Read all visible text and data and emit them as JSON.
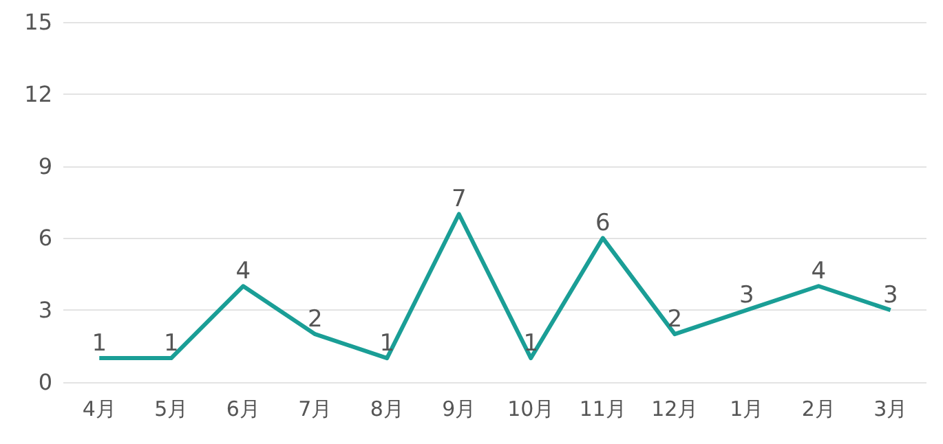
{
  "chart_data": {
    "type": "line",
    "categories": [
      "4月",
      "5月",
      "6月",
      "7月",
      "8月",
      "9月",
      "10月",
      "11月",
      "12月",
      "1月",
      "2月",
      "3月"
    ],
    "series": [
      {
        "color": "#1a9e96",
        "values": [
          1,
          1,
          4,
          2,
          1,
          7,
          1,
          6,
          2,
          3,
          4,
          3
        ]
      }
    ],
    "ylim": [
      0,
      15
    ],
    "yticks": [
      0,
      3,
      6,
      9,
      12,
      15
    ],
    "grid": "y",
    "data_labels": true,
    "marker": "none",
    "line_style": "solid"
  }
}
